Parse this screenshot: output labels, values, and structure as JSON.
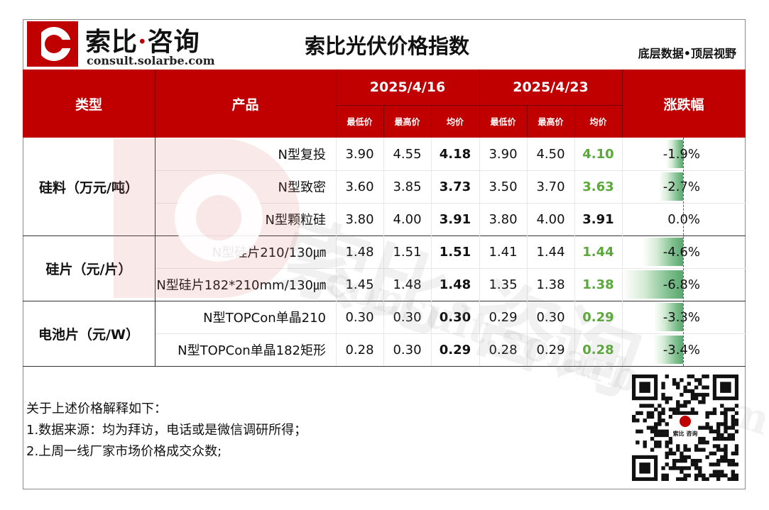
{
  "header": {
    "logo_cn_a": "索比",
    "logo_dot": "·",
    "logo_cn_b": "咨询",
    "logo_en": "consult.solarbe.com",
    "title": "索比光伏价格指数",
    "slogan": "底层数据•顶层视野"
  },
  "table": {
    "col_type": "类型",
    "col_product": "产品",
    "col_change": "涨跌幅",
    "date1": "2025/4/16",
    "date2": "2025/4/23",
    "sub": {
      "min": "最低价",
      "max": "最高价",
      "avg": "均价"
    },
    "groups": [
      {
        "type": "硅料（万元/吨）",
        "rows": [
          {
            "product": "N型复投",
            "d1": [
              "3.90",
              "4.55",
              "4.18"
            ],
            "d2": [
              "3.90",
              "4.50",
              "4.10"
            ],
            "change": "-1.9%",
            "change_value": -1.9
          },
          {
            "product": "N型致密",
            "d1": [
              "3.60",
              "3.85",
              "3.73"
            ],
            "d2": [
              "3.50",
              "3.70",
              "3.63"
            ],
            "change": "-2.7%",
            "change_value": -2.7
          },
          {
            "product": "N型颗粒硅",
            "d1": [
              "3.80",
              "4.00",
              "3.91"
            ],
            "d2": [
              "3.80",
              "4.00",
              "3.91"
            ],
            "change": "0.0%",
            "change_value": 0.0
          }
        ]
      },
      {
        "type": "硅片（元/片）",
        "rows": [
          {
            "product": "N型硅片210/130㎛",
            "d1": [
              "1.48",
              "1.51",
              "1.51"
            ],
            "d2": [
              "1.41",
              "1.44",
              "1.44"
            ],
            "change": "-4.6%",
            "change_value": -4.6
          },
          {
            "product": "N型硅片182*210mm/130㎛",
            "d1": [
              "1.45",
              "1.48",
              "1.48"
            ],
            "d2": [
              "1.35",
              "1.38",
              "1.38"
            ],
            "change": "-6.8%",
            "change_value": -6.8
          }
        ]
      },
      {
        "type": "电池片（元/W）",
        "rows": [
          {
            "product": "N型TOPCon单晶210",
            "d1": [
              "0.30",
              "0.30",
              "0.30"
            ],
            "d2": [
              "0.29",
              "0.30",
              "0.29"
            ],
            "change": "-3.3%",
            "change_value": -3.3
          },
          {
            "product": "N型TOPCon单晶182矩形",
            "d1": [
              "0.28",
              "0.30",
              "0.29"
            ],
            "d2": [
              "0.28",
              "0.29",
              "0.28"
            ],
            "change": "-3.4%",
            "change_value": -3.4
          }
        ]
      }
    ]
  },
  "notes": {
    "intro": "关于上述价格解释如下：",
    "line1": "1.数据来源：均为拜访，电话或是微信调研所得；",
    "line2": "2.上周一线厂家市场价格成交众数;"
  },
  "qr": {
    "label": "索比 咨询"
  },
  "watermark": {
    "cn": "索比·咨询",
    "en": "consult.solarbe.com"
  },
  "colors": {
    "header_red": "#c00000",
    "green_text": "#5aa83a",
    "bar_green": "#5aa86f"
  }
}
